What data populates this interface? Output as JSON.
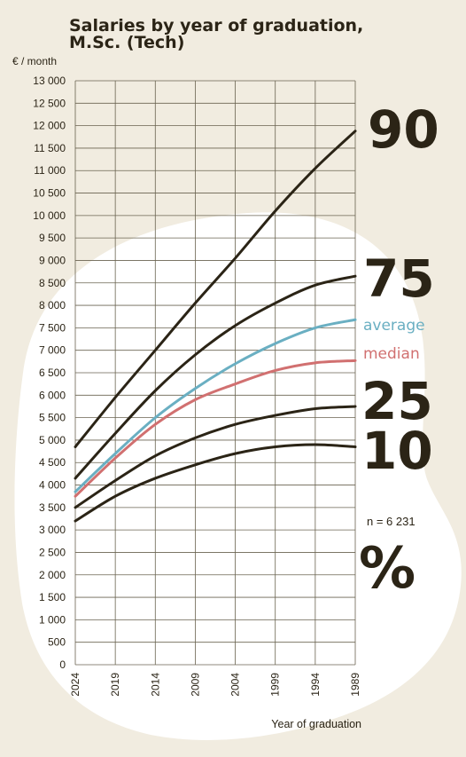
{
  "chart_data": {
    "type": "line",
    "title": [
      "Salaries by year of graduation,",
      "M.Sc. (Tech)"
    ],
    "ylabel": "€ / month",
    "xlabel": "Year of graduation",
    "ylim": [
      0,
      13000
    ],
    "xlim": [
      2024,
      1989
    ],
    "x_ticks": [
      2024,
      2019,
      2014,
      2009,
      2004,
      1999,
      1994,
      1989
    ],
    "y_ticks": [
      0,
      500,
      1000,
      1500,
      2000,
      2500,
      3000,
      3500,
      4000,
      4500,
      5000,
      5500,
      6000,
      6500,
      7000,
      7500,
      8000,
      8500,
      9000,
      9500,
      10000,
      10500,
      11000,
      11500,
      12000,
      12500,
      13000
    ],
    "y_tick_labels": [
      "0",
      "500",
      "1 000",
      "1 500",
      "2 000",
      "2 500",
      "3 000",
      "3 500",
      "4 000",
      "4 500",
      "5 000",
      "5 500",
      "6 000",
      "6 500",
      "7 000",
      "7 500",
      "8 000",
      "8 500",
      "9 000",
      "9 500",
      "10 000",
      "10 500",
      "11 000",
      "11 500",
      "12 000",
      "12 500",
      "13 000"
    ],
    "grid": true,
    "x": [
      2024,
      2019,
      2014,
      2009,
      2004,
      1999,
      1994,
      1989
    ],
    "series": [
      {
        "name": "90",
        "color": "#2b2416",
        "values": [
          4850,
          5950,
          7000,
          8050,
          9050,
          10100,
          11050,
          11880
        ]
      },
      {
        "name": "75",
        "color": "#2b2416",
        "values": [
          4150,
          5150,
          6100,
          6900,
          7550,
          8050,
          8450,
          8650
        ]
      },
      {
        "name": "average",
        "color": "#6aafc2",
        "values": [
          3850,
          4700,
          5500,
          6150,
          6700,
          7150,
          7500,
          7680
        ]
      },
      {
        "name": "median",
        "color": "#d17070",
        "values": [
          3750,
          4600,
          5350,
          5900,
          6250,
          6550,
          6720,
          6770
        ]
      },
      {
        "name": "25",
        "color": "#2b2416",
        "values": [
          3500,
          4100,
          4650,
          5050,
          5350,
          5550,
          5700,
          5750
        ]
      },
      {
        "name": "10",
        "color": "#2b2416",
        "values": [
          3200,
          3750,
          4150,
          4450,
          4700,
          4850,
          4900,
          4850
        ]
      }
    ],
    "n_label": "n = 6 231",
    "percent_label": "%"
  }
}
